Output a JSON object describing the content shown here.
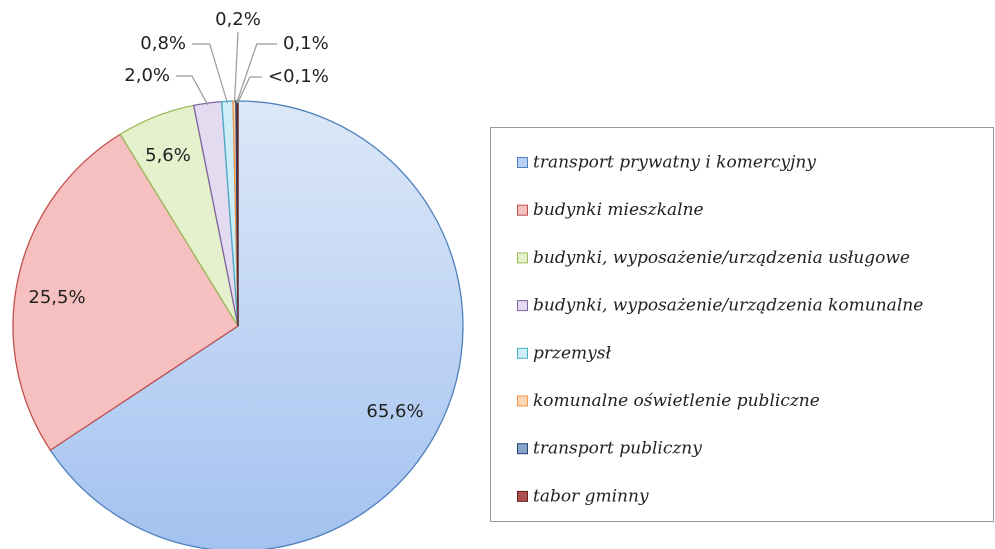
{
  "chart_data": {
    "type": "pie",
    "categories": [
      "transport prywatny i komercyjny",
      "budynki mieszkalne",
      "budynki, wyposażenie/urządzenia usługowe",
      "budynki, wyposażenie/urządzenia komunalne",
      "przemysł",
      "komunalne oświetlenie publiczne",
      "transport publiczny",
      "tabor gminny"
    ],
    "values": [
      65.6,
      25.5,
      5.6,
      2.0,
      0.8,
      0.2,
      0.1,
      0.05
    ],
    "value_labels": [
      "65,6%",
      "25,5%",
      "5,6%",
      "2,0%",
      "0,8%",
      "0,2%",
      "0,1%",
      "<0,1%"
    ],
    "colors": [
      "#b9d0f4",
      "#f7c0c0",
      "#e4f1cc",
      "#e3dbef",
      "#cdeef7",
      "#fcd7b6",
      "#8aa4c8",
      "#b0504e"
    ],
    "border_colors": [
      "#4f81bd",
      "#c0504d",
      "#9bbb59",
      "#8064a2",
      "#4bacc6",
      "#f79646",
      "#1f497d",
      "#632523"
    ],
    "legend": "right"
  }
}
